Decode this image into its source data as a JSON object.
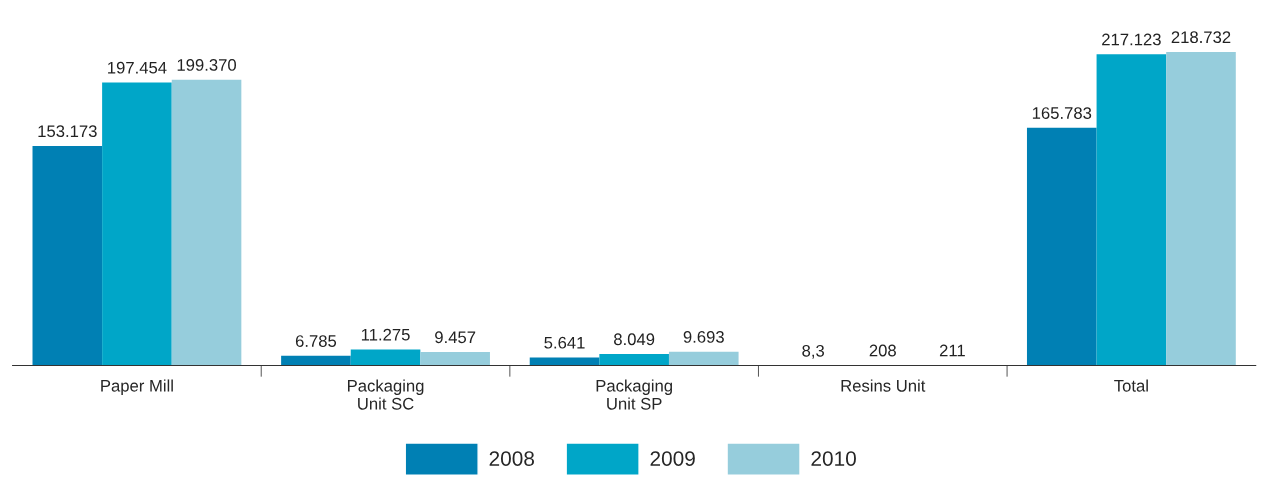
{
  "chart_data": {
    "type": "bar",
    "categories": [
      "Paper Mill",
      "Packaging\nUnit SC",
      "Packaging\nUnit SP",
      "Resins Unit",
      "Total"
    ],
    "series": [
      {
        "name": "2008",
        "color": "#0080b4",
        "values": [
          153173,
          6785,
          5641,
          8.3,
          165783
        ],
        "value_labels": [
          "153.173",
          "6.785",
          "5.641",
          "8,3",
          "165.783"
        ]
      },
      {
        "name": "2009",
        "color": "#00a6c8",
        "values": [
          197454,
          11275,
          8049,
          208,
          217123
        ],
        "value_labels": [
          "197.454",
          "11.275",
          "8.049",
          "208",
          "217.123"
        ]
      },
      {
        "name": "2010",
        "color": "#96cddc",
        "values": [
          199370,
          9457,
          9693,
          211,
          218732
        ],
        "value_labels": [
          "199.370",
          "9.457",
          "9.693",
          "211",
          "218.732"
        ]
      }
    ],
    "legend": "bottom",
    "grid": false,
    "tick_labels": "x"
  }
}
